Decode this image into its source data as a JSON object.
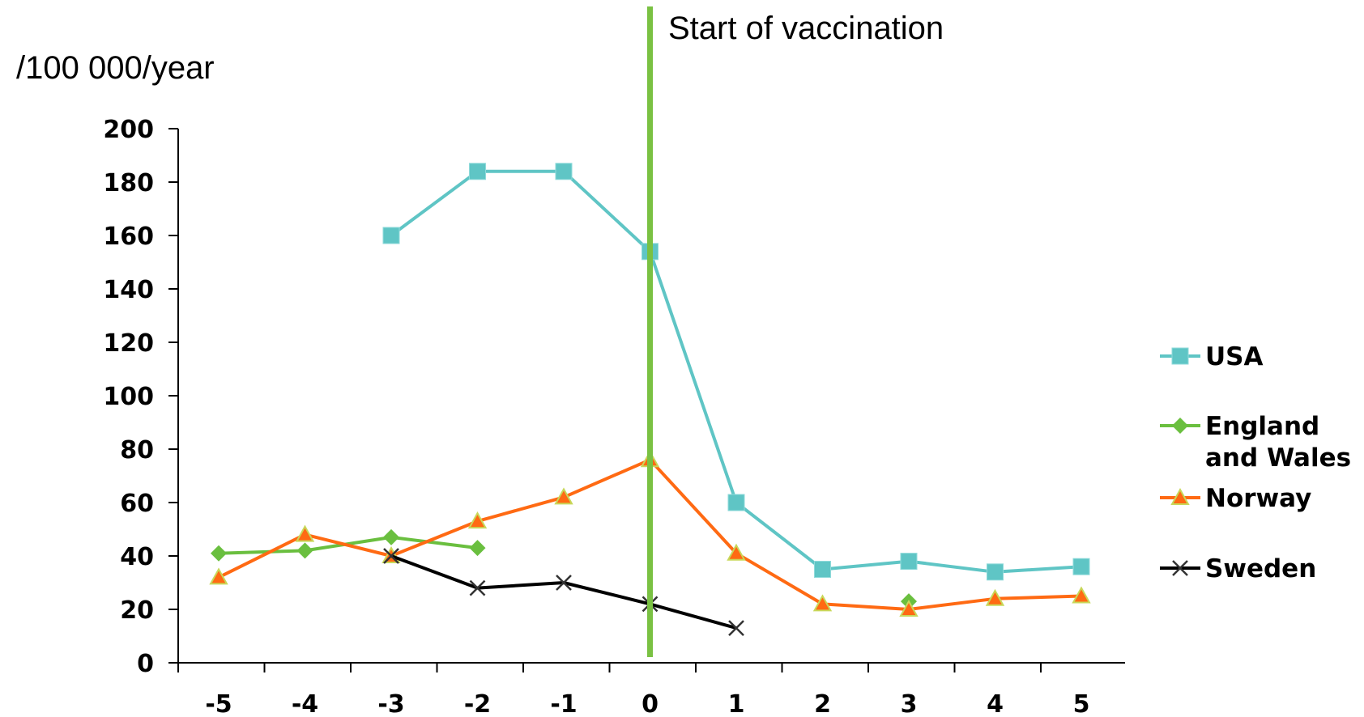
{
  "chart_data": {
    "type": "line",
    "ylabel": "/100 000/year",
    "annotation": "Start of vaccination",
    "annotation_x": 0,
    "x": [
      -5,
      -4,
      -3,
      -2,
      -1,
      0,
      1,
      2,
      3,
      4,
      5
    ],
    "xticks": [
      "-5",
      "-4",
      "-3",
      "-2",
      "-1",
      "0",
      "1",
      "2",
      "3",
      "4",
      "5"
    ],
    "ylim": [
      0,
      200
    ],
    "yticks": [
      "0",
      "20",
      "40",
      "60",
      "80",
      "100",
      "120",
      "140",
      "160",
      "180",
      "200"
    ],
    "grid": false,
    "legend_position": "right",
    "series": [
      {
        "name": "USA",
        "color": "#5fc5c5",
        "marker": "square",
        "values": [
          null,
          null,
          160,
          184,
          184,
          154,
          60,
          35,
          38,
          34,
          36
        ]
      },
      {
        "name": "England and Wales",
        "legend_lines": [
          "England",
          "and Wales"
        ],
        "color": "#6abf3f",
        "marker": "diamond",
        "values": [
          41,
          42,
          47,
          43,
          null,
          null,
          null,
          null,
          23,
          null,
          null
        ]
      },
      {
        "name": "Norway",
        "color": "#ff6a13",
        "marker": "triangle",
        "values": [
          32,
          48,
          40,
          53,
          62,
          76,
          41,
          22,
          20,
          24,
          25
        ]
      },
      {
        "name": "Sweden",
        "color": "#000000",
        "marker": "x",
        "values": [
          null,
          null,
          40,
          28,
          30,
          22,
          13,
          null,
          null,
          null,
          null
        ]
      }
    ],
    "vline_color": "#7ac143"
  }
}
